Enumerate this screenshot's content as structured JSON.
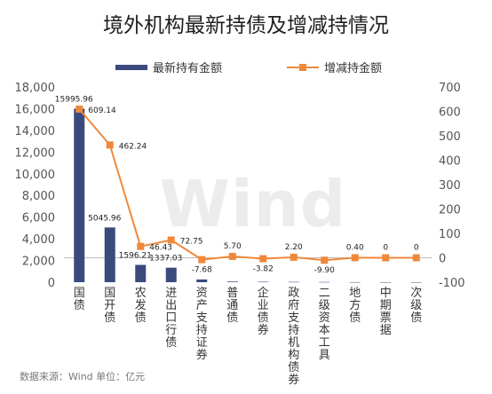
{
  "chart_data": {
    "type": "bar",
    "title": "境外机构最新持债及增减持情况",
    "categories": [
      "国债",
      "国开债",
      "农发债",
      "进出口行债",
      "资产支持证券",
      "普通债",
      "企业债券",
      "政府支持机构债券",
      "二级资本工具",
      "地方债",
      "中期票据",
      "次级债"
    ],
    "series": [
      {
        "name": "最新持有金额",
        "type": "bar",
        "axis": "left",
        "color": "#3a4a7d",
        "values": [
          15995.96,
          5045.96,
          1596.21,
          1337.03,
          250,
          60,
          40,
          30,
          20,
          8,
          5,
          3
        ],
        "labels": [
          "15995.96",
          "5045.96",
          "1596.21",
          "1337.03",
          "",
          "",
          "",
          "",
          "",
          "",
          "",
          ""
        ]
      },
      {
        "name": "增减持金额",
        "type": "line",
        "axis": "right",
        "color": "#f0883a",
        "values": [
          609.14,
          462.24,
          46.43,
          72.75,
          -7.68,
          5.7,
          -3.82,
          2.2,
          -9.9,
          0.4,
          0,
          0
        ],
        "labels": [
          "609.14",
          "462.24",
          "46.43",
          "72.75",
          "-7.68",
          "5.70",
          "-3.82",
          "2.20",
          "-9.90",
          "0.40",
          "0",
          "0"
        ]
      }
    ],
    "y_left": {
      "min": 0,
      "max": 18000,
      "ticks": [
        "0",
        "2,000",
        "4,000",
        "6,000",
        "8,000",
        "10,000",
        "12,000",
        "14,000",
        "16,000",
        "18,000"
      ]
    },
    "y_right": {
      "min": -100,
      "max": 700,
      "ticks": [
        "-100",
        "0",
        "100",
        "200",
        "300",
        "400",
        "500",
        "600",
        "700"
      ]
    },
    "grid": false,
    "legend_position": "top"
  },
  "source_note": "数据来源：Wind  单位：亿元",
  "watermark": "Wind"
}
